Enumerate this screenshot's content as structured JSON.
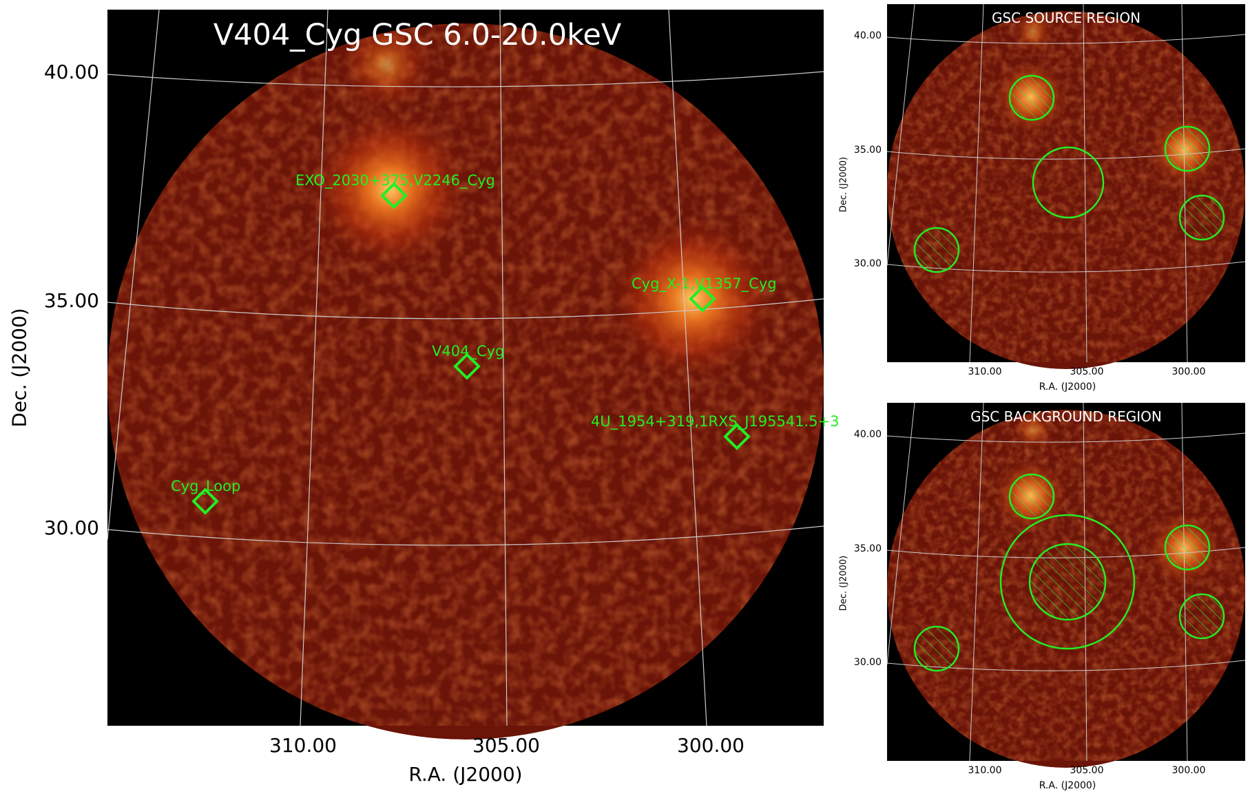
{
  "main": {
    "title": "V404_Cyg GSC 6.0-20.0keV",
    "ylabel": "Dec. (J2000)",
    "xlabel": "R.A. (J2000)",
    "yticks": [
      "40.00",
      "35.00",
      "30.00"
    ],
    "xticks": [
      "310.00",
      "305.00",
      "300.00"
    ],
    "sources": [
      {
        "name": "EXO_2030+375,V2246_Cyg"
      },
      {
        "name": "Cyg_X-1,V1357_Cyg"
      },
      {
        "name": "V404_Cyg"
      },
      {
        "name": "4U_1954+319,1RXS_J195541.5+3"
      },
      {
        "name": "Cyg_Loop"
      }
    ]
  },
  "source_region": {
    "title": "GSC SOURCE REGION",
    "ylabel": "Dec. (J2000)",
    "xlabel": "R.A. (J2000)",
    "yticks": [
      "40.00",
      "35.00",
      "30.00"
    ],
    "xticks": [
      "310.00",
      "305.00",
      "300.00"
    ]
  },
  "background_region": {
    "title": "GSC BACKGROUND REGION",
    "ylabel": "Dec. (J2000)",
    "xlabel": "R.A. (J2000)",
    "yticks": [
      "40.00",
      "35.00",
      "30.00"
    ],
    "xticks": [
      "310.00",
      "305.00",
      "300.00"
    ]
  },
  "colors": {
    "region": "#22ee22",
    "grid": "#cccccc",
    "background": "#000000",
    "image_low": "#5a0f05",
    "image_high": "#ff9a30"
  }
}
